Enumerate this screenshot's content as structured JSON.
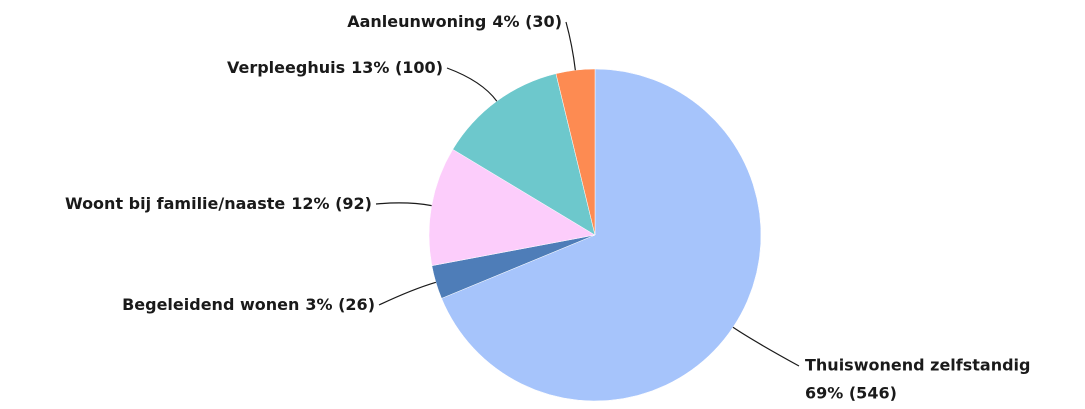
{
  "chart_data": {
    "type": "pie",
    "categories": [
      "Thuiswonend zelfstandig",
      "Begeleidend wonen",
      "Woont bij familie/naaste",
      "Verpleeghuis",
      "Aanleunwoning"
    ],
    "values": [
      546,
      26,
      92,
      100,
      30
    ],
    "value_labels": [
      "69% (546)",
      "3% (26)",
      "12% (92)",
      "13% (100)",
      "4% (30)"
    ],
    "colors": [
      "#a6c4fb",
      "#4e7db8",
      "#fccdfb",
      "#6dc8cc",
      "#fd8b52"
    ]
  }
}
